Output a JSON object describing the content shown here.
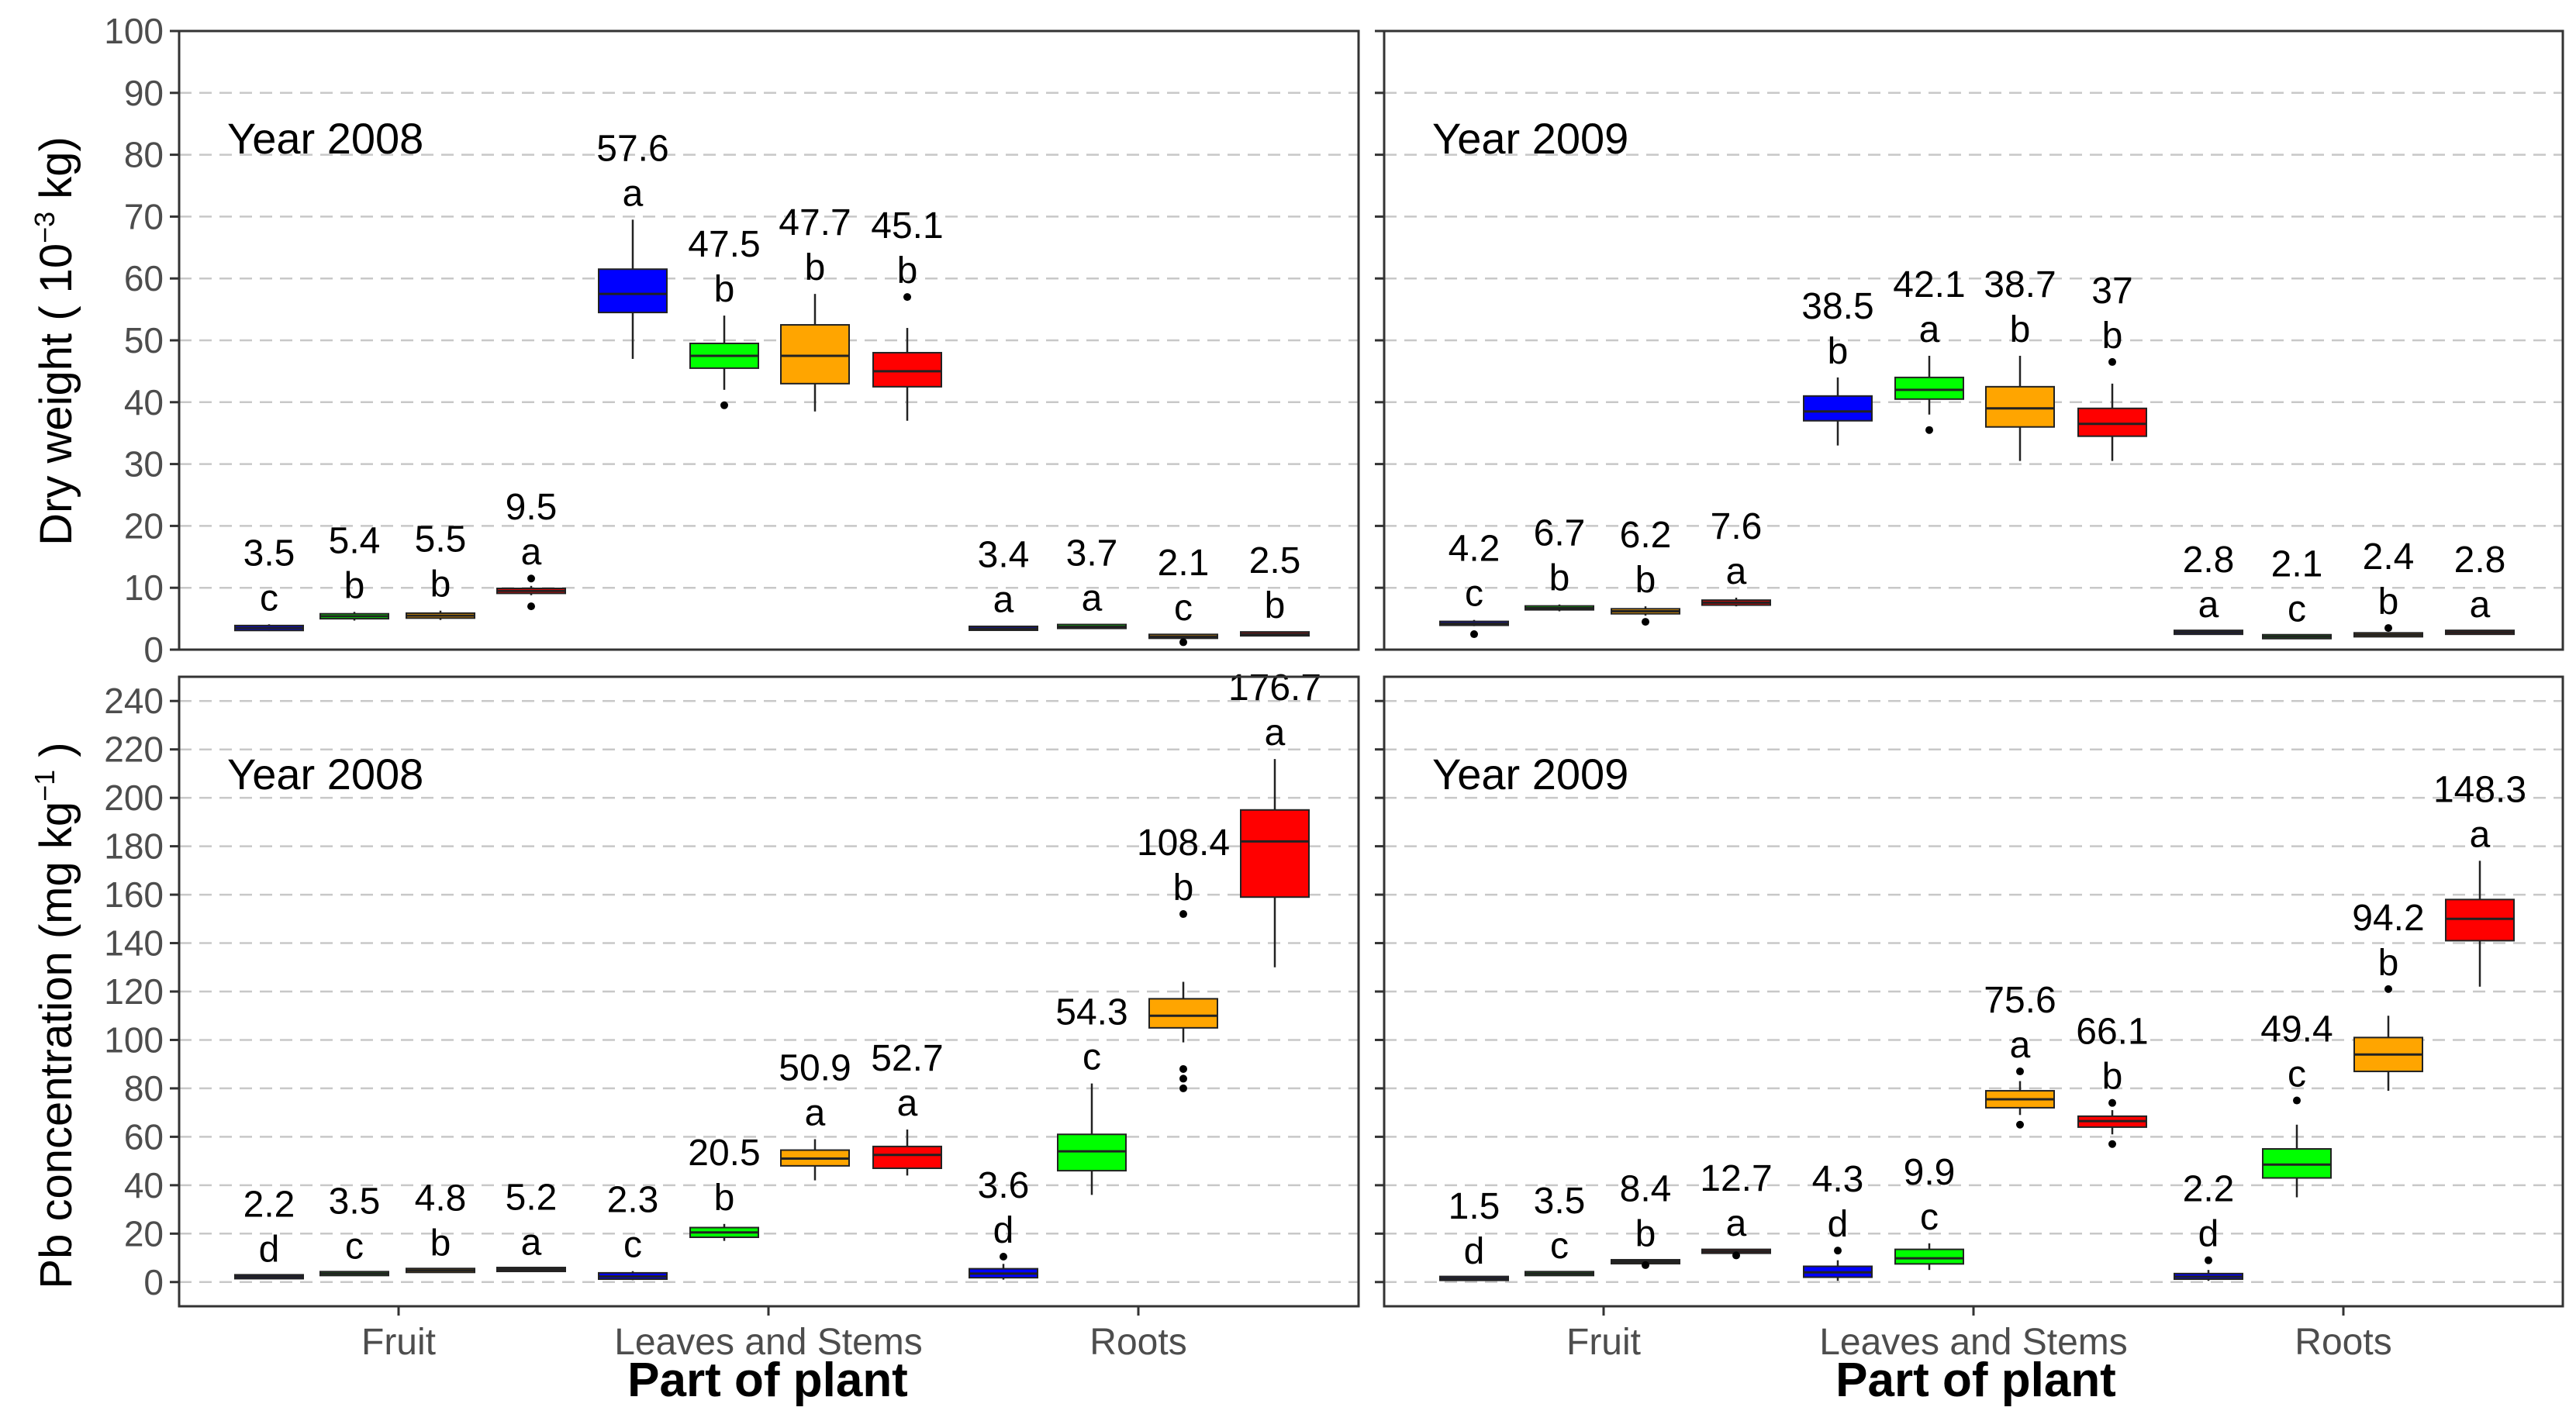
{
  "chart_data": [
    {
      "type": "boxplot",
      "panel": "top-left",
      "label": "Year 2008",
      "metric": "dry_weight",
      "ylim": [
        0,
        100
      ],
      "yticks": [
        "0",
        "10",
        "20",
        "30",
        "40",
        "50",
        "60",
        "70",
        "80",
        "90",
        "100"
      ],
      "boxes": [
        {
          "group": "Fruit",
          "color": "#0000ff",
          "min": 3.0,
          "q1": 3.1,
          "median": 3.5,
          "q3": 3.9,
          "max": 4.1,
          "outliers": [],
          "mean_label": "3.5",
          "letter": "c"
        },
        {
          "group": "Fruit",
          "color": "#00ff00",
          "min": 4.7,
          "q1": 5.0,
          "median": 5.4,
          "q3": 5.8,
          "max": 6.1,
          "outliers": [],
          "mean_label": "5.4",
          "letter": "b"
        },
        {
          "group": "Fruit",
          "color": "#ffa500",
          "min": 4.8,
          "q1": 5.1,
          "median": 5.5,
          "q3": 5.9,
          "max": 6.3,
          "outliers": [],
          "mean_label": "5.5",
          "letter": "b"
        },
        {
          "group": "Fruit",
          "color": "#ff0000",
          "min": 8.8,
          "q1": 9.1,
          "median": 9.5,
          "q3": 9.9,
          "max": 10.3,
          "outliers": [
            7,
            11.5
          ],
          "mean_label": "9.5",
          "letter": "a"
        },
        {
          "group": "Leaves and Stems",
          "color": "#0000ff",
          "min": 47,
          "q1": 54.5,
          "median": 57.5,
          "q3": 61.5,
          "max": 69.5,
          "outliers": [],
          "mean_label": "57.6",
          "letter": "a"
        },
        {
          "group": "Leaves and Stems",
          "color": "#00ff00",
          "min": 42,
          "q1": 45.5,
          "median": 47.5,
          "q3": 49.5,
          "max": 54,
          "outliers": [
            39.5
          ],
          "mean_label": "47.5",
          "letter": "b"
        },
        {
          "group": "Leaves and Stems",
          "color": "#ffa500",
          "min": 38.5,
          "q1": 43,
          "median": 47.5,
          "q3": 52.5,
          "max": 57.5,
          "outliers": [],
          "mean_label": "47.7",
          "letter": "b"
        },
        {
          "group": "Leaves and Stems",
          "color": "#ff0000",
          "min": 37,
          "q1": 42.5,
          "median": 45,
          "q3": 48,
          "max": 52,
          "outliers": [
            57
          ],
          "mean_label": "45.1",
          "letter": "b"
        },
        {
          "group": "Roots",
          "color": "#0000ff",
          "min": 3.1,
          "q1": 3.3,
          "median": 3.4,
          "q3": 3.6,
          "max": 3.8,
          "outliers": [],
          "mean_label": "3.4",
          "letter": "a"
        },
        {
          "group": "Roots",
          "color": "#00ff00",
          "min": 3.4,
          "q1": 3.6,
          "median": 3.7,
          "q3": 3.9,
          "max": 4.1,
          "outliers": [],
          "mean_label": "3.7",
          "letter": "a"
        },
        {
          "group": "Roots",
          "color": "#ffa500",
          "min": 1.8,
          "q1": 2.0,
          "median": 2.1,
          "q3": 2.3,
          "max": 2.5,
          "outliers": [
            1.2
          ],
          "mean_label": "2.1",
          "letter": "c"
        },
        {
          "group": "Roots",
          "color": "#ff0000",
          "min": 2.2,
          "q1": 2.4,
          "median": 2.5,
          "q3": 2.7,
          "max": 2.9,
          "outliers": [],
          "mean_label": "2.5",
          "letter": "b"
        }
      ]
    },
    {
      "type": "boxplot",
      "panel": "top-right",
      "label": "Year 2009",
      "metric": "dry_weight",
      "ylim": [
        0,
        100
      ],
      "yticks": [
        "0",
        "10",
        "20",
        "30",
        "40",
        "50",
        "60",
        "70",
        "80",
        "90",
        "100"
      ],
      "boxes": [
        {
          "group": "Fruit",
          "color": "#0000ff",
          "min": 3.8,
          "q1": 4.0,
          "median": 4.2,
          "q3": 4.5,
          "max": 4.8,
          "outliers": [
            2.5
          ],
          "mean_label": "4.2",
          "letter": "c"
        },
        {
          "group": "Fruit",
          "color": "#00ff00",
          "min": 6.2,
          "q1": 6.5,
          "median": 6.7,
          "q3": 7.0,
          "max": 7.3,
          "outliers": [],
          "mean_label": "6.7",
          "letter": "b"
        },
        {
          "group": "Fruit",
          "color": "#ffa500",
          "min": 5.5,
          "q1": 5.8,
          "median": 6.2,
          "q3": 6.6,
          "max": 7.0,
          "outliers": [
            4.5
          ],
          "mean_label": "6.2",
          "letter": "b"
        },
        {
          "group": "Fruit",
          "color": "#ff0000",
          "min": 7.0,
          "q1": 7.2,
          "median": 7.6,
          "q3": 8.0,
          "max": 8.4,
          "outliers": [],
          "mean_label": "7.6",
          "letter": "a"
        },
        {
          "group": "Leaves and Stems",
          "color": "#0000ff",
          "min": 33,
          "q1": 37,
          "median": 38.5,
          "q3": 41,
          "max": 44,
          "outliers": [],
          "mean_label": "38.5",
          "letter": "b"
        },
        {
          "group": "Leaves and Stems",
          "color": "#00ff00",
          "min": 38,
          "q1": 40.5,
          "median": 42,
          "q3": 44,
          "max": 47.5,
          "outliers": [
            35.5
          ],
          "mean_label": "42.1",
          "letter": "a"
        },
        {
          "group": "Leaves and Stems",
          "color": "#ffa500",
          "min": 30.5,
          "q1": 36,
          "median": 39,
          "q3": 42.5,
          "max": 47.5,
          "outliers": [],
          "mean_label": "38.7",
          "letter": "b"
        },
        {
          "group": "Leaves and Stems",
          "color": "#ff0000",
          "min": 30.5,
          "q1": 34.5,
          "median": 36.5,
          "q3": 39,
          "max": 43,
          "outliers": [
            46.5
          ],
          "mean_label": "37",
          "letter": "b"
        },
        {
          "group": "Roots",
          "color": "#0000ff",
          "min": 2.6,
          "q1": 2.7,
          "median": 2.8,
          "q3": 2.9,
          "max": 3.0,
          "outliers": [],
          "mean_label": "2.8",
          "letter": "a"
        },
        {
          "group": "Roots",
          "color": "#00ff00",
          "min": 1.9,
          "q1": 2.0,
          "median": 2.1,
          "q3": 2.2,
          "max": 2.3,
          "outliers": [],
          "mean_label": "2.1",
          "letter": "c"
        },
        {
          "group": "Roots",
          "color": "#ffa500",
          "min": 2.2,
          "q1": 2.3,
          "median": 2.4,
          "q3": 2.5,
          "max": 2.6,
          "outliers": [
            3.5
          ],
          "mean_label": "2.4",
          "letter": "b"
        },
        {
          "group": "Roots",
          "color": "#ff0000",
          "min": 2.6,
          "q1": 2.7,
          "median": 2.8,
          "q3": 2.9,
          "max": 3.0,
          "outliers": [],
          "mean_label": "2.8",
          "letter": "a"
        }
      ]
    },
    {
      "type": "boxplot",
      "panel": "bottom-left",
      "label": "Year 2008",
      "metric": "pb_concentration",
      "ylim": [
        -10,
        250
      ],
      "yticks": [
        "0",
        "20",
        "40",
        "60",
        "80",
        "100",
        "120",
        "140",
        "160",
        "180",
        "200",
        "220",
        "240"
      ],
      "boxes": [
        {
          "group": "Fruit",
          "color": "#0000ff",
          "min": 1.8,
          "q1": 2.0,
          "median": 2.2,
          "q3": 2.4,
          "max": 2.6,
          "outliers": [],
          "mean_label": "2.2",
          "letter": "d"
        },
        {
          "group": "Fruit",
          "color": "#00ff00",
          "min": 3.1,
          "q1": 3.3,
          "median": 3.5,
          "q3": 3.7,
          "max": 3.9,
          "outliers": [],
          "mean_label": "3.5",
          "letter": "c"
        },
        {
          "group": "Fruit",
          "color": "#ffa500",
          "min": 4.4,
          "q1": 4.6,
          "median": 4.8,
          "q3": 5.0,
          "max": 5.2,
          "outliers": [],
          "mean_label": "4.8",
          "letter": "b"
        },
        {
          "group": "Fruit",
          "color": "#ff0000",
          "min": 4.8,
          "q1": 5.0,
          "median": 5.2,
          "q3": 5.4,
          "max": 5.6,
          "outliers": [],
          "mean_label": "5.2",
          "letter": "a"
        },
        {
          "group": "Leaves and Stems",
          "color": "#0000ff",
          "min": 0.8,
          "q1": 1.2,
          "median": 2.3,
          "q3": 3.8,
          "max": 4.5,
          "outliers": [],
          "mean_label": "2.3",
          "letter": "c"
        },
        {
          "group": "Leaves and Stems",
          "color": "#00ff00",
          "min": 17,
          "q1": 18.5,
          "median": 20.5,
          "q3": 22.5,
          "max": 24,
          "outliers": [],
          "mean_label": "20.5",
          "letter": "b"
        },
        {
          "group": "Leaves and Stems",
          "color": "#ffa500",
          "min": 42,
          "q1": 48,
          "median": 51,
          "q3": 54.5,
          "max": 59,
          "outliers": [],
          "mean_label": "50.9",
          "letter": "a"
        },
        {
          "group": "Leaves and Stems",
          "color": "#ff0000",
          "min": 44,
          "q1": 47,
          "median": 52.5,
          "q3": 56,
          "max": 63,
          "outliers": [],
          "mean_label": "52.7",
          "letter": "a"
        },
        {
          "group": "Roots",
          "color": "#0000ff",
          "min": 1,
          "q1": 1.8,
          "median": 3.5,
          "q3": 5.5,
          "max": 7.5,
          "outliers": [
            10.5
          ],
          "mean_label": "3.6",
          "letter": "d"
        },
        {
          "group": "Roots",
          "color": "#00ff00",
          "min": 36,
          "q1": 46,
          "median": 54,
          "q3": 61,
          "max": 82,
          "outliers": [],
          "mean_label": "54.3",
          "letter": "c"
        },
        {
          "group": "Roots",
          "color": "#ffa500",
          "min": 99,
          "q1": 105,
          "median": 110,
          "q3": 117,
          "max": 124,
          "outliers": [
            152,
            88,
            84,
            80
          ],
          "mean_label": "108.4",
          "letter": "b"
        },
        {
          "group": "Roots",
          "color": "#ff0000",
          "min": 130,
          "q1": 159,
          "median": 182,
          "q3": 195,
          "max": 216,
          "outliers": [],
          "mean_label": "176.7",
          "letter": "a"
        }
      ]
    },
    {
      "type": "boxplot",
      "panel": "bottom-right",
      "label": "Year 2009",
      "metric": "pb_concentration",
      "ylim": [
        -10,
        250
      ],
      "yticks": [
        "0",
        "20",
        "40",
        "60",
        "80",
        "100",
        "120",
        "140",
        "160",
        "180",
        "200",
        "220",
        "240"
      ],
      "boxes": [
        {
          "group": "Fruit",
          "color": "#0000ff",
          "min": 1.1,
          "q1": 1.3,
          "median": 1.5,
          "q3": 1.7,
          "max": 1.9,
          "outliers": [],
          "mean_label": "1.5",
          "letter": "d"
        },
        {
          "group": "Fruit",
          "color": "#00ff00",
          "min": 3.0,
          "q1": 3.2,
          "median": 3.5,
          "q3": 3.8,
          "max": 4.1,
          "outliers": [],
          "mean_label": "3.5",
          "letter": "c"
        },
        {
          "group": "Fruit",
          "color": "#ffa500",
          "min": 7.8,
          "q1": 8.1,
          "median": 8.4,
          "q3": 8.7,
          "max": 9.0,
          "outliers": [
            7
          ],
          "mean_label": "8.4",
          "letter": "b"
        },
        {
          "group": "Fruit",
          "color": "#ff0000",
          "min": 12.1,
          "q1": 12.4,
          "median": 12.7,
          "q3": 13.0,
          "max": 13.3,
          "outliers": [
            11
          ],
          "mean_label": "12.7",
          "letter": "a"
        },
        {
          "group": "Leaves and Stems",
          "color": "#0000ff",
          "min": 0.5,
          "q1": 2,
          "median": 4,
          "q3": 6.5,
          "max": 9,
          "outliers": [
            13
          ],
          "mean_label": "4.3",
          "letter": "d"
        },
        {
          "group": "Leaves and Stems",
          "color": "#00ff00",
          "min": 5,
          "q1": 7.5,
          "median": 9.8,
          "q3": 13.5,
          "max": 16,
          "outliers": [],
          "mean_label": "9.9",
          "letter": "c"
        },
        {
          "group": "Leaves and Stems",
          "color": "#ffa500",
          "min": 69,
          "q1": 72,
          "median": 75.5,
          "q3": 79,
          "max": 83,
          "outliers": [
            87,
            65
          ],
          "mean_label": "75.6",
          "letter": "a"
        },
        {
          "group": "Leaves and Stems",
          "color": "#ff0000",
          "min": 61,
          "q1": 64,
          "median": 66.5,
          "q3": 68.5,
          "max": 71,
          "outliers": [
            74,
            57
          ],
          "mean_label": "66.1",
          "letter": "b"
        },
        {
          "group": "Roots",
          "color": "#0000ff",
          "min": 0.5,
          "q1": 1.2,
          "median": 2.2,
          "q3": 3.5,
          "max": 5,
          "outliers": [
            9
          ],
          "mean_label": "2.2",
          "letter": "d"
        },
        {
          "group": "Roots",
          "color": "#00ff00",
          "min": 35,
          "q1": 43,
          "median": 48.5,
          "q3": 55,
          "max": 65,
          "outliers": [
            75
          ],
          "mean_label": "49.4",
          "letter": "c"
        },
        {
          "group": "Roots",
          "color": "#ffa500",
          "min": 79,
          "q1": 87,
          "median": 94,
          "q3": 101,
          "max": 110,
          "outliers": [
            121
          ],
          "mean_label": "94.2",
          "letter": "b"
        },
        {
          "group": "Roots",
          "color": "#ff0000",
          "min": 122,
          "q1": 141,
          "median": 150,
          "q3": 158,
          "max": 174,
          "outliers": [],
          "mean_label": "148.3",
          "letter": "a"
        }
      ]
    }
  ],
  "axes": {
    "y_top_title": "Dry weight ( 10",
    "y_top_exp": "−3",
    "y_top_unit": " kg)",
    "y_bottom_title": "Pb concentration (mg  kg",
    "y_bottom_exp": "−1",
    "y_bottom_close": " )",
    "x_title_left": "Part of plant",
    "x_title_right": "Part of plant",
    "categories": [
      "Fruit",
      "Leaves and Stems",
      "Roots"
    ]
  }
}
